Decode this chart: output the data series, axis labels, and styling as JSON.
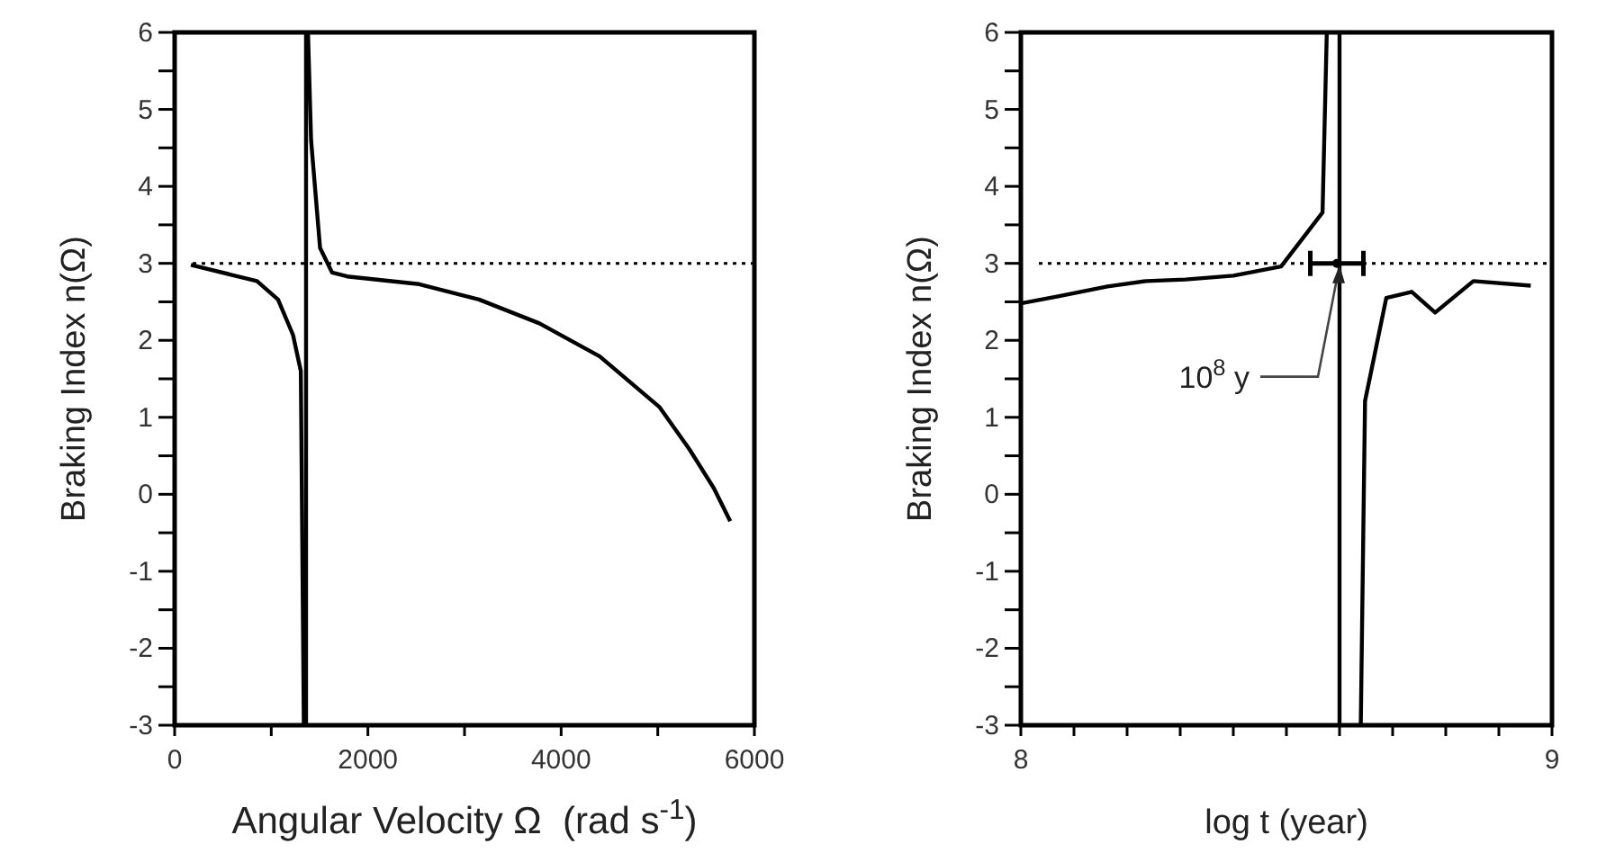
{
  "chart_data": [
    {
      "type": "line",
      "xlabel": "Angular Velocity Ω  (rad s$^{-1}$)",
      "ylabel": "Braking Index n(Ω)",
      "xlim": [
        0,
        6000
      ],
      "ylim": [
        -3,
        6
      ],
      "xticks": [
        0,
        {
          "value": 1000,
          "label": null
        },
        2000,
        {
          "value": 3000,
          "label": null
        },
        4000,
        {
          "value": 5000,
          "label": null
        },
        6000
      ],
      "yticks": [
        -3,
        {
          "value": -2.5,
          "label": null
        },
        -2,
        {
          "value": -1.5,
          "label": null
        },
        -1,
        {
          "value": -0.5,
          "label": null
        },
        0,
        {
          "value": 0.5,
          "label": null
        },
        1,
        {
          "value": 1.5,
          "label": null
        },
        2,
        {
          "value": 2.5,
          "label": null
        },
        3,
        {
          "value": 3.5,
          "label": null
        },
        4,
        {
          "value": 4.5,
          "label": null
        },
        5,
        {
          "value": 5.5,
          "label": null
        },
        6
      ],
      "grid": false,
      "line_style": "solid",
      "series": [
        {
          "color": "#000000",
          "x": [
            168,
            852,
            1070,
            1225,
            1287,
            1306,
            1337
          ],
          "values": [
            2.98,
            2.77,
            2.53,
            2.07,
            1.71,
            1.6,
            -3
          ]
        },
        {
          "color": "#000000",
          "x": [
            1380,
            1412,
            1505,
            1630,
            1785,
            2530,
            3150,
            3775,
            4400,
            5020,
            5330,
            5580,
            5750
          ],
          "values": [
            6,
            4.6,
            3.2,
            2.88,
            2.83,
            2.73,
            2.53,
            2.22,
            1.79,
            1.13,
            0.58,
            0.08,
            -0.35
          ]
        }
      ],
      "ref_lines": [
        {
          "axis": "x",
          "value": 1360,
          "color": "#000000",
          "line_style": "solid"
        },
        {
          "axis": "y",
          "value": 3,
          "color": "#000000",
          "line_style": "dotted"
        }
      ]
    },
    {
      "type": "line",
      "xlabel": "log t (year)",
      "ylabel": "Braking Index n(Ω)",
      "xlim": [
        8,
        9
      ],
      "ylim": [
        -3,
        6
      ],
      "xticks": [
        8,
        {
          "value": 8.1,
          "label": null
        },
        {
          "value": 8.2,
          "label": null
        },
        {
          "value": 8.3,
          "label": null
        },
        {
          "value": 8.4,
          "label": null
        },
        {
          "value": 8.5,
          "label": null
        },
        {
          "value": 8.6,
          "label": null
        },
        {
          "value": 8.7,
          "label": null
        },
        {
          "value": 8.8,
          "label": null
        },
        {
          "value": 8.9,
          "label": null
        },
        9
      ],
      "yticks": [
        -3,
        {
          "value": -2.5,
          "label": null
        },
        -2,
        {
          "value": -1.5,
          "label": null
        },
        -1,
        {
          "value": -0.5,
          "label": null
        },
        0,
        {
          "value": 0.5,
          "label": null
        },
        1,
        {
          "value": 1.5,
          "label": null
        },
        2,
        {
          "value": 2.5,
          "label": null
        },
        3,
        {
          "value": 3.5,
          "label": null
        },
        4,
        {
          "value": 4.5,
          "label": null
        },
        5,
        {
          "value": 5.5,
          "label": null
        },
        6
      ],
      "grid": false,
      "line_style": "solid",
      "series": [
        {
          "color": "#000000",
          "x": [
            8.0,
            8.07,
            8.163,
            8.236,
            8.31,
            8.4,
            8.49,
            8.568,
            8.576
          ],
          "values": [
            2.48,
            2.57,
            2.7,
            2.77,
            2.79,
            2.84,
            2.96,
            3.66,
            6
          ]
        },
        {
          "color": "#000000",
          "x": [
            8.64,
            8.648,
            8.688,
            8.736,
            8.78,
            8.852,
            8.96
          ],
          "values": [
            -3,
            1.21,
            2.55,
            2.63,
            2.36,
            2.77,
            2.71
          ]
        },
        {
          "type": "scatter",
          "marker": "circle",
          "color": "#000000",
          "x": [
            8.595
          ],
          "values": [
            3
          ],
          "xerrors": [
            0.05
          ]
        }
      ],
      "ref_lines": [
        {
          "axis": "x",
          "value": 8.6,
          "color": "#000000",
          "line_style": "solid"
        },
        {
          "axis": "y",
          "value": 3,
          "color": "#000000",
          "line_style": "dotted"
        }
      ],
      "annotations": [
        {
          "text": "10$^{8}$ y",
          "x": 8.6,
          "y": 3
        }
      ]
    }
  ]
}
